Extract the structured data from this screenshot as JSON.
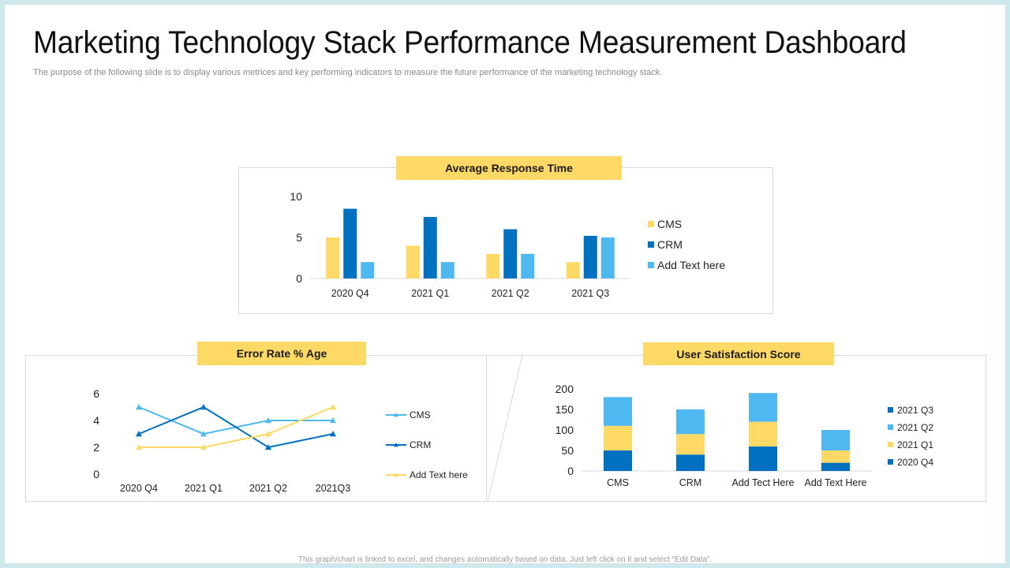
{
  "title": "Marketing Technology Stack Performance Measurement Dashboard",
  "subtitle": "The purpose of the following slide is to display various metrices and key performing indicators to measure the future performance of the marketing technology stack.",
  "footer": "This graph/chart is linked to excel, and changes automatically  based on data. Just left click on it and select “Edit Data”.",
  "colors": {
    "yellow": "#ffd966",
    "dark_blue": "#0070c0",
    "light_blue": "#4fb8f0"
  },
  "panels": {
    "response": {
      "label": "Average Response Time"
    },
    "error": {
      "label": "Error Rate % Age"
    },
    "satisfaction": {
      "label": "User Satisfaction Score"
    }
  },
  "chart_data": [
    {
      "type": "bar",
      "title": "Average Response Time",
      "categories": [
        "2020 Q4",
        "2021 Q1",
        "2021 Q2",
        "2021 Q3"
      ],
      "yticks": [
        "0",
        "5",
        "10"
      ],
      "ylim": [
        0,
        10
      ],
      "series": [
        {
          "name": "CMS",
          "color": "#ffd966",
          "values": [
            5,
            4,
            3,
            2
          ]
        },
        {
          "name": "CRM",
          "color": "#0070c0",
          "values": [
            8.5,
            7.5,
            6,
            5.2
          ]
        },
        {
          "name": "Add Text here",
          "color": "#4fb8f0",
          "values": [
            2,
            2,
            3,
            5
          ]
        }
      ],
      "legend": "right"
    },
    {
      "type": "line",
      "title": "Error Rate % Age",
      "categories": [
        "2020 Q4",
        "2021 Q1",
        "2021 Q2",
        "2021Q3"
      ],
      "yticks": [
        "0",
        "2",
        "4",
        "6"
      ],
      "ylim": [
        0,
        6
      ],
      "series": [
        {
          "name": "CMS",
          "color": "#4fb8f0",
          "values": [
            5,
            3,
            4,
            4
          ]
        },
        {
          "name": "CRM",
          "color": "#0070c0",
          "values": [
            3,
            5,
            2,
            3
          ]
        },
        {
          "name": "Add Text here",
          "color": "#ffd966",
          "values": [
            2,
            2,
            3,
            5
          ]
        }
      ],
      "legend": "right"
    },
    {
      "type": "bar",
      "stacked": true,
      "title": "User Satisfaction Score",
      "categories": [
        "CMS",
        "CRM",
        "Add Tect Here",
        "Add Text Here"
      ],
      "yticks": [
        "0",
        "50",
        "100",
        "150",
        "200"
      ],
      "ylim": [
        0,
        200
      ],
      "series": [
        {
          "name": "2020 Q4",
          "color": "#0070c0",
          "values": [
            50,
            40,
            60,
            20
          ]
        },
        {
          "name": "2021 Q1",
          "color": "#ffd966",
          "values": [
            60,
            50,
            60,
            30
          ]
        },
        {
          "name": "2021 Q2",
          "color": "#4fb8f0",
          "values": [
            70,
            60,
            70,
            50
          ]
        },
        {
          "name": "2021 Q3",
          "color": "#0070c0",
          "values": [
            0,
            0,
            0,
            0
          ]
        }
      ],
      "legend_order": [
        "2021 Q3",
        "2021 Q2",
        "2021 Q1",
        "2020 Q4"
      ],
      "legend": "right"
    }
  ]
}
